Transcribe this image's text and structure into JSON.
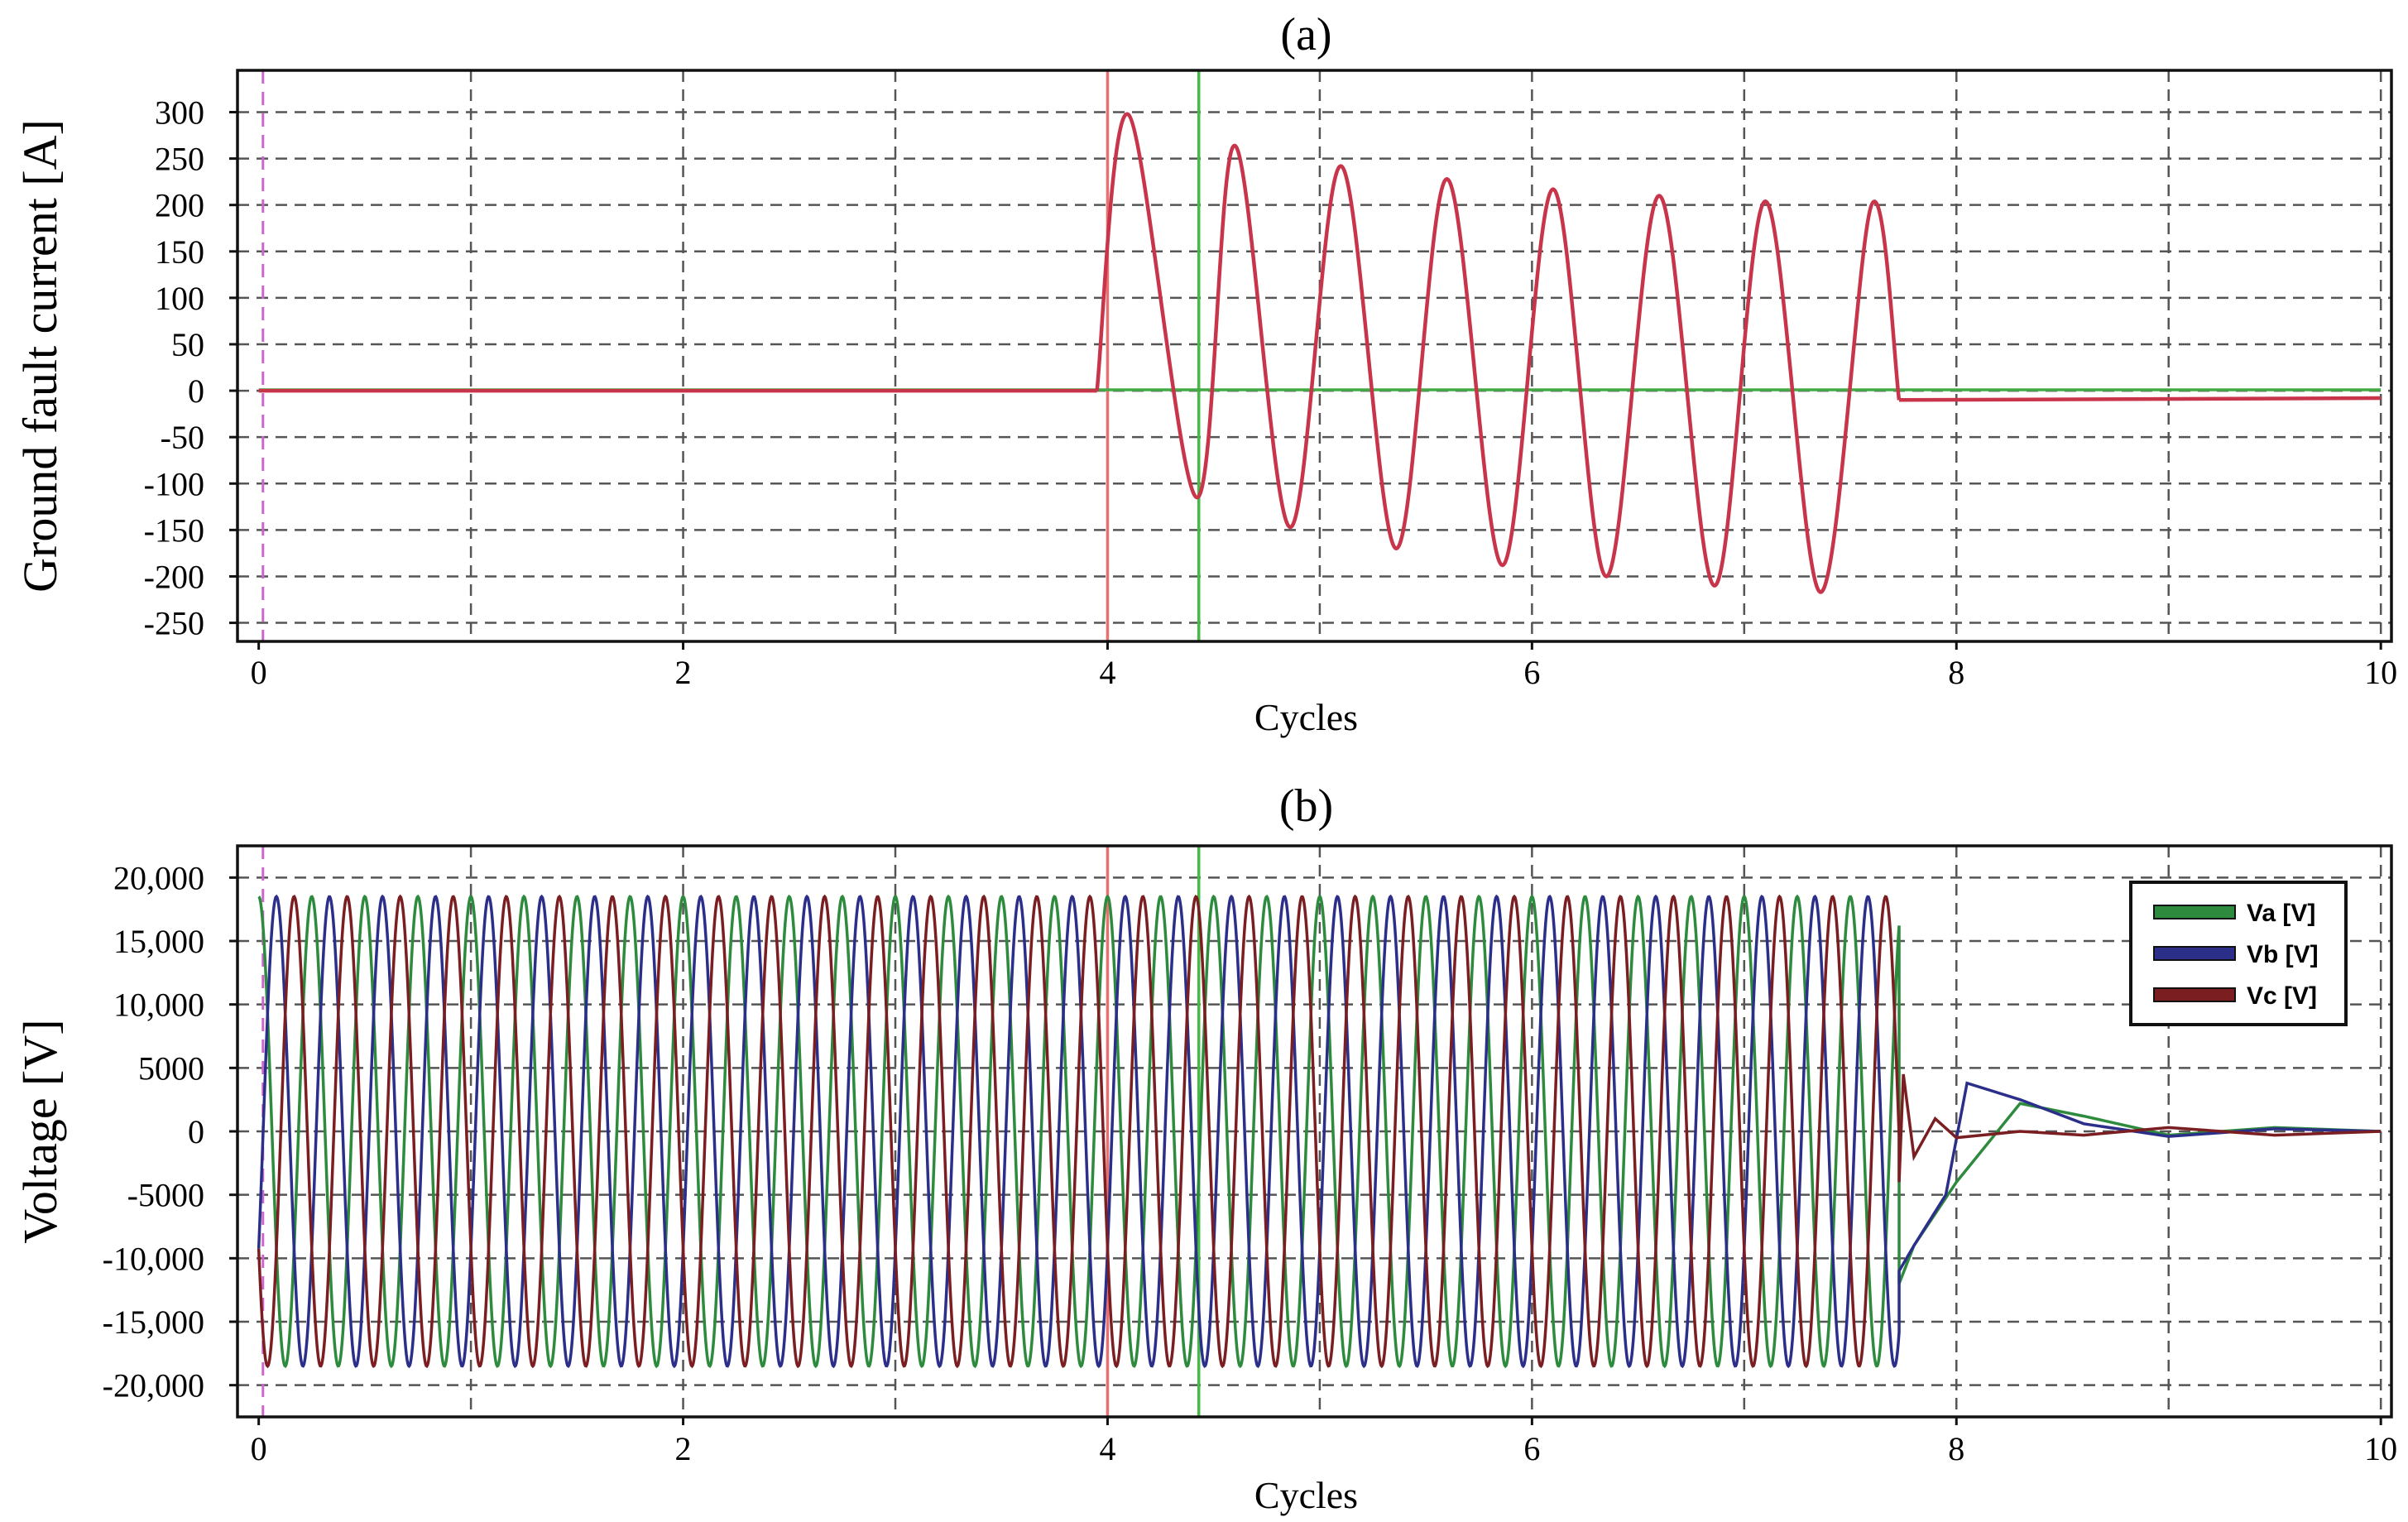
{
  "chart_data": [
    {
      "panel_title": "(a)",
      "type": "line",
      "xlabel": "Cycles",
      "ylabel": "Ground fault current [A]",
      "xlim": [
        -0.1,
        10.05
      ],
      "ylim": [
        -270,
        345
      ],
      "xticks": [
        0,
        2,
        4,
        6,
        8,
        10
      ],
      "xtick_labels": [
        "0",
        "2",
        "4",
        "6",
        "8",
        "10"
      ],
      "x_gridlines": [
        1,
        2,
        3,
        4,
        5,
        6,
        7,
        8,
        9,
        10
      ],
      "yticks": [
        300,
        250,
        200,
        150,
        100,
        50,
        0,
        -50,
        -100,
        -150,
        -200,
        -250
      ],
      "ytick_labels": [
        "300",
        "250",
        "200",
        "150",
        "100",
        "50",
        "0",
        "-50",
        "-100",
        "-150",
        "-200",
        "-250"
      ],
      "grid": true,
      "vertical_markers": [
        {
          "x": 0.02,
          "color": "#cc66cc",
          "style": "dashed"
        },
        {
          "x": 4.0,
          "color": "#e87070",
          "style": "solid"
        },
        {
          "x": 4.43,
          "color": "#44bb44",
          "style": "solid"
        }
      ],
      "series": [
        {
          "color": "#44aa44",
          "segments": [
            {
              "x": [
                0,
                10
              ],
              "y": [
                1,
                1
              ]
            }
          ]
        },
        {
          "color": "#c8344a",
          "segments": [
            {
              "x": [
                0,
                3.95
              ],
              "y": [
                0,
                0
              ]
            },
            {
              "x": [
                3.95,
                4.1,
                4.42,
                4.6,
                4.86,
                5.1,
                5.36,
                5.6,
                5.86,
                6.1,
                6.35,
                6.6,
                6.86,
                7.1,
                7.36,
                7.6,
                7.73
              ],
              "y": [
                0,
                297,
                -115,
                264,
                -147,
                242,
                -170,
                228,
                -188,
                217,
                -200,
                210,
                -210,
                204,
                -217,
                200,
                -10
              ]
            },
            {
              "x": [
                7.73,
                10
              ],
              "y": [
                -10,
                -8
              ]
            }
          ]
        }
      ]
    },
    {
      "panel_title": "(b)",
      "type": "line",
      "xlabel": "Cycles",
      "ylabel": "Voltage [V]",
      "xlim": [
        -0.1,
        10.05
      ],
      "ylim": [
        -22500,
        22500
      ],
      "xticks": [
        0,
        2,
        4,
        6,
        8,
        10
      ],
      "xtick_labels": [
        "0",
        "2",
        "4",
        "6",
        "8",
        "10"
      ],
      "x_gridlines": [
        1,
        2,
        3,
        4,
        5,
        6,
        7,
        8,
        9,
        10
      ],
      "yticks": [
        20000,
        15000,
        10000,
        5000,
        0,
        -5000,
        -10000,
        -15000,
        -20000
      ],
      "ytick_labels": [
        "20,000",
        "15,000",
        "10,000",
        "5000",
        "0",
        "-5000",
        "-10,000",
        "-15,000",
        "-20,000"
      ],
      "grid": true,
      "legend_position": "top-right",
      "vertical_markers": [
        {
          "x": 0.02,
          "color": "#cc66cc",
          "style": "dashed"
        },
        {
          "x": 4.0,
          "color": "#e87070",
          "style": "solid"
        },
        {
          "x": 4.43,
          "color": "#44bb44",
          "style": "solid"
        }
      ],
      "waveform": {
        "periods_per_cycle": 4,
        "amplitude": 18500,
        "end_x": 7.73
      },
      "series": [
        {
          "name": "Va [V]",
          "color": "#2e8b3e",
          "phase_deg": 90,
          "tail": {
            "x": [
              7.73,
              7.8,
              8.0,
              8.3,
              8.6,
              9.0,
              9.5,
              10.0
            ],
            "y": [
              -12000,
              -9000,
              -4000,
              2200,
              1200,
              -300,
              300,
              0
            ]
          }
        },
        {
          "name": "Vb [V]",
          "color": "#2c2f8a",
          "phase_deg": -30,
          "tail": {
            "x": [
              7.73,
              7.8,
              7.95,
              8.05,
              8.3,
              8.6,
              9.0,
              9.5,
              10.0
            ],
            "y": [
              -11000,
              -9000,
              -5000,
              3800,
              2500,
              600,
              -400,
              200,
              0
            ]
          }
        },
        {
          "name": "Vc [V]",
          "color": "#7a1e22",
          "phase_deg": 210,
          "tail": {
            "x": [
              7.73,
              7.75,
              7.8,
              7.9,
              8.0,
              8.3,
              8.6,
              9.0,
              9.5,
              10.0
            ],
            "y": [
              -4000,
              4500,
              -2000,
              1000,
              -500,
              0,
              -300,
              300,
              -300,
              0
            ]
          }
        }
      ]
    }
  ]
}
